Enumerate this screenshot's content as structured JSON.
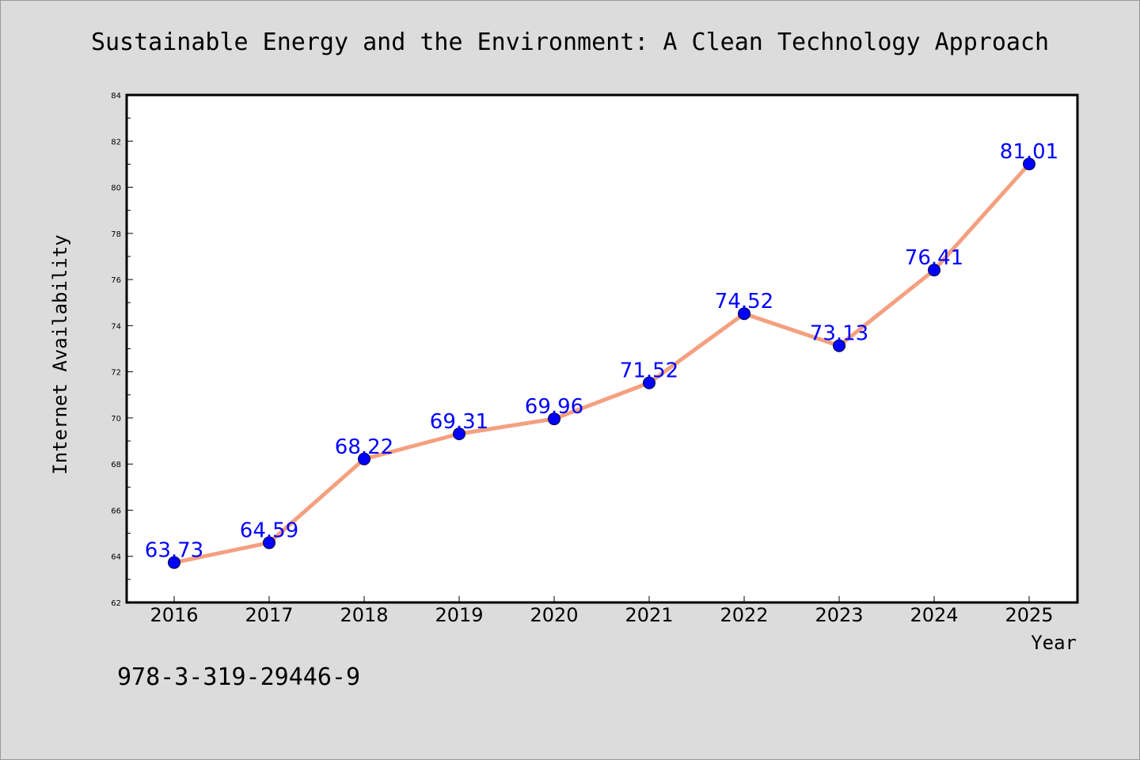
{
  "colors": {
    "background": "#dcdcdc",
    "plot_background": "#ffffff",
    "line": "#f4a080",
    "marker": "#0000ff",
    "data_label": "#0000ff"
  },
  "footer": {
    "isbn": "978-3-319-29446-9"
  },
  "chart_data": {
    "type": "line",
    "title": "Sustainable Energy and the Environment: A Clean Technology Approach",
    "xlabel": "Year",
    "ylabel": "Internet Availability",
    "categories": [
      "2016",
      "2017",
      "2018",
      "2019",
      "2020",
      "2021",
      "2022",
      "2023",
      "2024",
      "2025"
    ],
    "series": [
      {
        "values": [
          63.73,
          64.59,
          68.22,
          69.31,
          69.96,
          71.52,
          74.52,
          73.13,
          76.41,
          81.01
        ],
        "data_labels": [
          "63.73",
          "64.59",
          "68.22",
          "69.31",
          "69.96",
          "71.52",
          "74.52",
          "73.13",
          "76.41",
          "81.01"
        ]
      }
    ],
    "ylim": [
      62,
      84
    ],
    "yticks": [
      "62",
      "64",
      "66",
      "68",
      "70",
      "72",
      "74",
      "76",
      "78",
      "80",
      "82",
      "84"
    ],
    "grid": false,
    "legend": "none",
    "marker": "circle"
  }
}
